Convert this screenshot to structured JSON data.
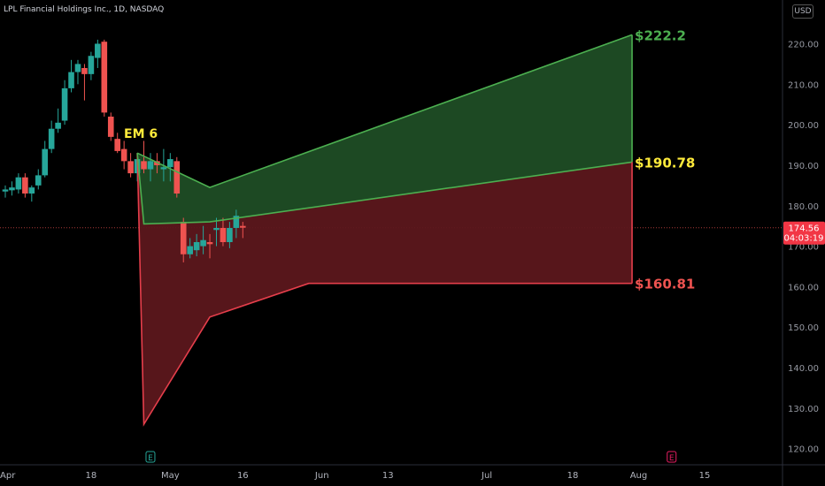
{
  "header": {
    "title": "LPL Financial Holdings Inc., 1D, NASDAQ",
    "currency_button": "USD"
  },
  "colors": {
    "up": "#26a69a",
    "down": "#ef5350",
    "green_fill": "#1f4d25",
    "green_line": "#4caf50",
    "red_fill": "#5c171c",
    "red_line": "#e53e4b",
    "mid_line": "#ffeb3b",
    "price_tag": "#f23645"
  },
  "chart_data": {
    "type": "candlestick",
    "y_axis": {
      "min": 116,
      "max": 226,
      "ticks": [
        120,
        130,
        140,
        150,
        160,
        170,
        180,
        190,
        200,
        210,
        220
      ],
      "tick_labels": [
        "120.00",
        "130.00",
        "140.00",
        "150.00",
        "160.00",
        "170.00",
        "180.00",
        "190.00",
        "200.00",
        "210.00",
        "220.00"
      ]
    },
    "x_axis": {
      "ticks": [
        {
          "label": "Apr",
          "x": 0
        },
        {
          "label": "18",
          "x": 13
        },
        {
          "label": "May",
          "x": 25
        },
        {
          "label": "16",
          "x": 36
        },
        {
          "label": "Jun",
          "x": 48
        },
        {
          "label": "13",
          "x": 58
        },
        {
          "label": "Jul",
          "x": 73
        },
        {
          "label": "18",
          "x": 86
        },
        {
          "label": "Aug",
          "x": 96
        },
        {
          "label": "15",
          "x": 106
        }
      ],
      "range": [
        0,
        117
      ]
    },
    "candles": [
      {
        "x": 0,
        "o": 183.5,
        "h": 185,
        "l": 182,
        "c": 184
      },
      {
        "x": 1,
        "o": 183.8,
        "h": 186,
        "l": 182.5,
        "c": 184.5
      },
      {
        "x": 2,
        "o": 184,
        "h": 188,
        "l": 183,
        "c": 187
      },
      {
        "x": 3,
        "o": 187,
        "h": 188,
        "l": 182,
        "c": 183
      },
      {
        "x": 4,
        "o": 183,
        "h": 185,
        "l": 181,
        "c": 184.5
      },
      {
        "x": 5,
        "o": 185,
        "h": 189,
        "l": 184,
        "c": 187.5
      },
      {
        "x": 6,
        "o": 187.5,
        "h": 196,
        "l": 187,
        "c": 194
      },
      {
        "x": 7,
        "o": 194,
        "h": 201,
        "l": 193,
        "c": 199
      },
      {
        "x": 8,
        "o": 199,
        "h": 204,
        "l": 198,
        "c": 200.5
      },
      {
        "x": 9,
        "o": 201,
        "h": 211,
        "l": 200,
        "c": 209
      },
      {
        "x": 10,
        "o": 209,
        "h": 216,
        "l": 208,
        "c": 213
      },
      {
        "x": 11,
        "o": 213,
        "h": 216,
        "l": 210,
        "c": 215
      },
      {
        "x": 12,
        "o": 214,
        "h": 215,
        "l": 206,
        "c": 212.5
      },
      {
        "x": 13,
        "o": 212.5,
        "h": 218,
        "l": 211,
        "c": 217
      },
      {
        "x": 14,
        "o": 216.5,
        "h": 221,
        "l": 214,
        "c": 220
      },
      {
        "x": 15,
        "o": 220.5,
        "h": 221,
        "l": 202,
        "c": 203
      },
      {
        "x": 16,
        "o": 202,
        "h": 203,
        "l": 196,
        "c": 197
      },
      {
        "x": 17,
        "o": 196.5,
        "h": 198,
        "l": 193,
        "c": 193.5
      },
      {
        "x": 18,
        "o": 194,
        "h": 196,
        "l": 189,
        "c": 191
      },
      {
        "x": 19,
        "o": 191,
        "h": 193,
        "l": 187,
        "c": 188
      },
      {
        "x": 20,
        "o": 188,
        "h": 192,
        "l": 186,
        "c": 191.5
      },
      {
        "x": 21,
        "o": 191,
        "h": 196,
        "l": 188,
        "c": 189
      },
      {
        "x": 22,
        "o": 189,
        "h": 193,
        "l": 186,
        "c": 191
      },
      {
        "x": 23,
        "o": 191,
        "h": 193,
        "l": 188,
        "c": 190
      },
      {
        "x": 24,
        "o": 189,
        "h": 194,
        "l": 186,
        "c": 189.5
      },
      {
        "x": 25,
        "o": 189.5,
        "h": 193,
        "l": 186,
        "c": 191.5
      },
      {
        "x": 26,
        "o": 191,
        "h": 192,
        "l": 182,
        "c": 183
      },
      {
        "x": 27,
        "o": 176,
        "h": 177,
        "l": 166,
        "c": 168
      },
      {
        "x": 28,
        "o": 168,
        "h": 172,
        "l": 167,
        "c": 170
      },
      {
        "x": 29,
        "o": 169,
        "h": 173,
        "l": 167.5,
        "c": 171
      },
      {
        "x": 30,
        "o": 170,
        "h": 175,
        "l": 168,
        "c": 171.5
      },
      {
        "x": 31,
        "o": 171,
        "h": 173,
        "l": 167,
        "c": 170.5
      },
      {
        "x": 32,
        "o": 174,
        "h": 177,
        "l": 170,
        "c": 174.5
      },
      {
        "x": 33,
        "o": 174.5,
        "h": 177,
        "l": 170,
        "c": 171
      },
      {
        "x": 34,
        "o": 171,
        "h": 176,
        "l": 169.5,
        "c": 174.5
      },
      {
        "x": 35,
        "o": 174.5,
        "h": 179,
        "l": 172,
        "c": 177.5
      },
      {
        "x": 36,
        "o": 175,
        "h": 176,
        "l": 172,
        "c": 174.56
      }
    ],
    "expected_move": {
      "label": "EM 6",
      "upper": [
        {
          "x": 20,
          "y": 193
        },
        {
          "x": 31,
          "y": 184.5
        },
        {
          "x": 95,
          "y": 222.2
        }
      ],
      "mid": [
        {
          "x": 20,
          "y": 193
        },
        {
          "x": 21,
          "y": 175.5
        },
        {
          "x": 31,
          "y": 176
        },
        {
          "x": 95,
          "y": 190.78
        }
      ],
      "lower": [
        {
          "x": 20,
          "y": 193
        },
        {
          "x": 21,
          "y": 126
        },
        {
          "x": 31,
          "y": 152.5
        },
        {
          "x": 46,
          "y": 160.81
        },
        {
          "x": 95,
          "y": 160.81
        }
      ],
      "labels": [
        {
          "text": "$222.2",
          "value": 222.2,
          "color": "#4caf50"
        },
        {
          "text": "$190.78",
          "value": 190.78,
          "color": "#ffeb3b"
        },
        {
          "text": "$160.81",
          "value": 160.81,
          "color": "#ef5350"
        }
      ]
    },
    "last_price": {
      "value": 174.56,
      "label": "174.56",
      "countdown": "04:03:19"
    },
    "events": [
      {
        "label": "E",
        "x": 22,
        "color": "#26a69a"
      },
      {
        "label": "E",
        "x": 101,
        "color": "#e91e63"
      }
    ]
  }
}
